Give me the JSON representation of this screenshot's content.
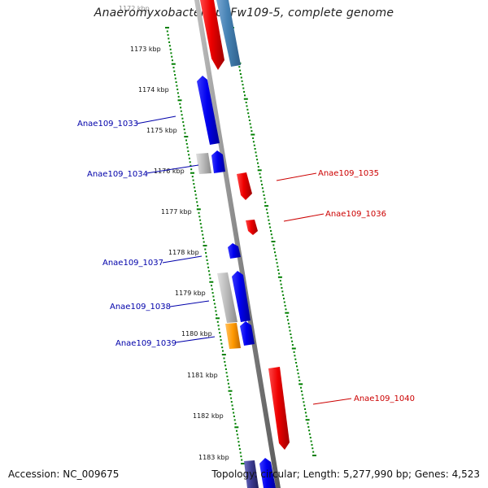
{
  "title": "Anaeromyxobacter sp. Fw109-5, complete genome",
  "footer": {
    "accession": "Accession: NC_009675",
    "topology": "Topology: circular; Length: 5,277,990 bp; Genes: 4,523"
  },
  "kbp_labels": [
    "1172 kbp",
    "1173 kbp",
    "1174 kbp",
    "1175 kbp",
    "1176 kbp",
    "1177 kbp",
    "1178 kbp",
    "1179 kbp",
    "1180 kbp",
    "1181 kbp",
    "1182 kbp",
    "1183 kbp"
  ],
  "gene_labels": {
    "left": [
      "Anae109_1033",
      "Anae109_1034",
      "Anae109_1037",
      "Anae109_1038",
      "Anae109_1039"
    ],
    "right": [
      "Anae109_1035",
      "Anae109_1036",
      "Anae109_1040"
    ]
  },
  "colors": {
    "forward_gene": "#0000ee",
    "reverse_gene": "#ee0000",
    "rna_gene": "#ff9900",
    "pseudo_gene": "#b0b0b0",
    "cds_light_blue": "#4682b4",
    "backbone": "#888888",
    "tick": "#008000"
  }
}
